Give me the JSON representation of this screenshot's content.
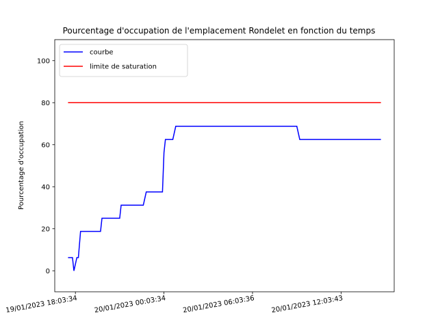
{
  "chart_data": {
    "type": "line",
    "title": "Pourcentage d'occupation de l'emplacement Rondelet en fonction du temps",
    "xlabel": "",
    "ylabel": "Pourcentage d'occupation",
    "ylim": [
      -10,
      110
    ],
    "yticks": [
      0,
      20,
      40,
      60,
      80,
      100
    ],
    "xticks": [
      {
        "hours": 0,
        "label": "19/01/2023 18:03:34"
      },
      {
        "hours": 6,
        "label": "20/01/2023 00:03:34"
      },
      {
        "hours": 12,
        "label": "20/01/2023 06:03:36"
      },
      {
        "hours": 18,
        "label": "20/01/2023 12:03:43"
      }
    ],
    "grid": false,
    "legend": {
      "position": "upper-left"
    },
    "series": [
      {
        "name": "courbe",
        "color": "#0000ff",
        "points": [
          [
            -0.5,
            6.25
          ],
          [
            -0.2,
            6.25
          ],
          [
            -0.1,
            0
          ],
          [
            0.1,
            6.25
          ],
          [
            0.2,
            6.25
          ],
          [
            0.35,
            18.75
          ],
          [
            1.7,
            18.75
          ],
          [
            1.8,
            25
          ],
          [
            3.0,
            25
          ],
          [
            3.1,
            31.25
          ],
          [
            4.6,
            31.25
          ],
          [
            4.8,
            37.5
          ],
          [
            5.9,
            37.5
          ],
          [
            6.0,
            56.25
          ],
          [
            6.1,
            62.5
          ],
          [
            6.6,
            62.5
          ],
          [
            6.8,
            68.75
          ],
          [
            15.0,
            68.75
          ],
          [
            15.2,
            62.5
          ],
          [
            20.7,
            62.5
          ]
        ]
      },
      {
        "name": "limite de saturation",
        "color": "#ff0000",
        "points": [
          [
            -0.5,
            80
          ],
          [
            20.7,
            80
          ]
        ]
      }
    ]
  }
}
